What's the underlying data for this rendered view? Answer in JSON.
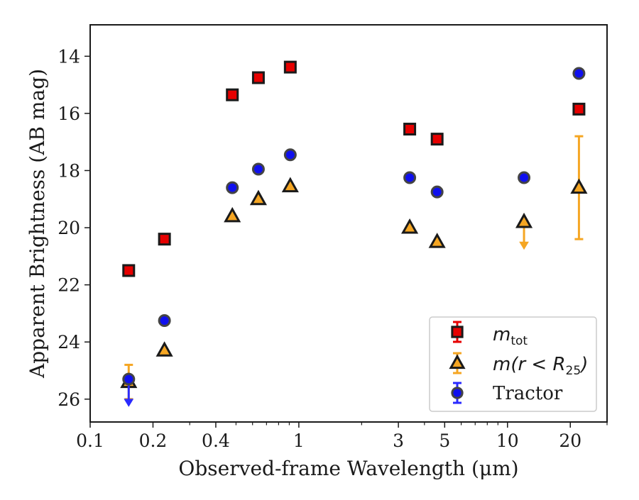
{
  "chart_data": {
    "type": "scatter",
    "xlabel": "Observed-frame Wavelength (μm)",
    "ylabel": "Apparent Brightness (AB mag)",
    "x_scale": "log",
    "xlim": [
      0.1,
      30
    ],
    "ylim": [
      26.8,
      12.9
    ],
    "y_inverted": true,
    "x_ticks": [
      0.1,
      0.2,
      0.4,
      1,
      3,
      5,
      10,
      20
    ],
    "x_tick_labels": [
      "0.1",
      "0.2",
      "0.4",
      "1",
      "3",
      "5",
      "10",
      "20"
    ],
    "y_ticks": [
      14,
      16,
      18,
      20,
      22,
      24,
      26
    ],
    "y_tick_labels": [
      "14",
      "16",
      "18",
      "20",
      "22",
      "24",
      "26"
    ],
    "legend_position": "bottom-right",
    "grid": false,
    "series": [
      {
        "name": "m_tot",
        "legend_main": "m",
        "legend_sub": "tot",
        "marker": "square",
        "color": "#e60000",
        "edge_color": "#1a1a1a",
        "errbar_color": "#e60000",
        "points": [
          {
            "x": 0.153,
            "y": 21.5
          },
          {
            "x": 0.227,
            "y": 20.4
          },
          {
            "x": 0.48,
            "y": 15.35
          },
          {
            "x": 0.64,
            "y": 14.75
          },
          {
            "x": 0.91,
            "y": 14.38
          },
          {
            "x": 3.4,
            "y": 16.55
          },
          {
            "x": 4.6,
            "y": 16.9
          },
          {
            "x": 22.0,
            "y": 15.85
          }
        ]
      },
      {
        "name": "m(r < R25)",
        "legend_main": "m(r < R",
        "legend_sub": "25",
        "legend_tail": ")",
        "marker": "triangle",
        "color": "#f5a623",
        "edge_color": "#1a1a1a",
        "errbar_color": "#f5a623",
        "points": [
          {
            "x": 0.153,
            "y": 25.4,
            "yerr_low": 24.8,
            "yerr_high": 26.0
          },
          {
            "x": 0.227,
            "y": 24.3
          },
          {
            "x": 0.48,
            "y": 19.6
          },
          {
            "x": 0.64,
            "y": 19.0
          },
          {
            "x": 0.91,
            "y": 18.55
          },
          {
            "x": 3.4,
            "y": 20.0
          },
          {
            "x": 4.6,
            "y": 20.5
          },
          {
            "x": 12.0,
            "y": 19.8,
            "upper_limit": true,
            "arrow_to": 20.7
          },
          {
            "x": 22.0,
            "y": 18.6,
            "yerr_low": 16.8,
            "yerr_high": 20.4
          }
        ]
      },
      {
        "name": "Tractor",
        "legend_main": "Tractor",
        "marker": "circle",
        "color": "#1010ee",
        "edge_color": "#444444",
        "errbar_color": "#2a2aff",
        "points": [
          {
            "x": 0.153,
            "y": 25.3,
            "upper_limit": true,
            "arrow_to": 26.2
          },
          {
            "x": 0.227,
            "y": 23.25
          },
          {
            "x": 0.48,
            "y": 18.6
          },
          {
            "x": 0.64,
            "y": 17.95
          },
          {
            "x": 0.91,
            "y": 17.45
          },
          {
            "x": 3.4,
            "y": 18.25
          },
          {
            "x": 4.6,
            "y": 18.75
          },
          {
            "x": 12.0,
            "y": 18.25
          },
          {
            "x": 22.0,
            "y": 14.6
          }
        ]
      }
    ]
  }
}
